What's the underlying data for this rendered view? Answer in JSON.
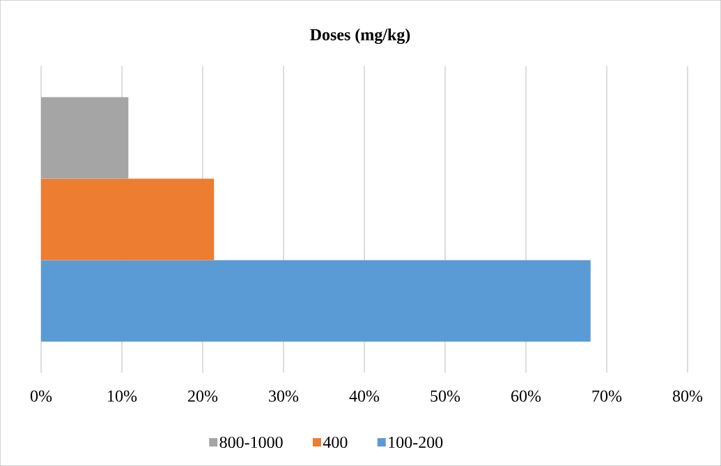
{
  "chart_data": {
    "type": "bar",
    "orientation": "horizontal",
    "title": "Doses (mg/kg)",
    "categories": [
      null
    ],
    "series": [
      {
        "name": "100-200",
        "color": "#5b9bd5",
        "values": [
          68.0
        ]
      },
      {
        "name": "400",
        "color": "#ed7d31",
        "values": [
          21.4
        ]
      },
      {
        "name": "800-1000",
        "color": "#a5a5a5",
        "values": [
          10.8
        ]
      }
    ],
    "xlim": [
      0,
      80
    ],
    "xticks": [
      {
        "value": 0,
        "label": "0%"
      },
      {
        "value": 10,
        "label": "10%"
      },
      {
        "value": 20,
        "label": "20%"
      },
      {
        "value": 30,
        "label": "30%"
      },
      {
        "value": 40,
        "label": "40%"
      },
      {
        "value": 50,
        "label": "50%"
      },
      {
        "value": 60,
        "label": "60%"
      },
      {
        "value": 70,
        "label": "70%"
      },
      {
        "value": 80,
        "label": "80%"
      }
    ],
    "grid": "x",
    "legend": "bottom"
  }
}
